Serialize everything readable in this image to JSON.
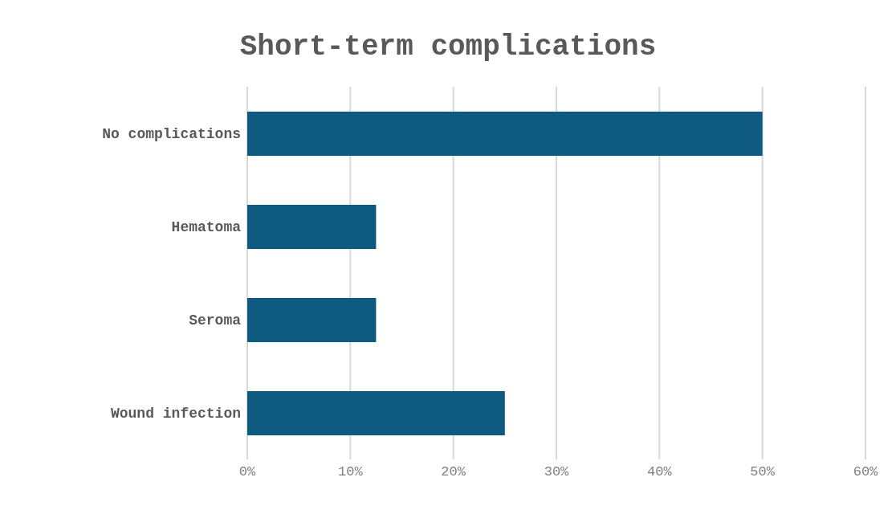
{
  "chart_data": {
    "type": "bar",
    "title": "Short-term complications",
    "orientation": "horizontal",
    "categories": [
      "No complications",
      "Hematoma",
      "Seroma",
      "Wound infection"
    ],
    "values": [
      50,
      12.5,
      12.5,
      25
    ],
    "color": "#0e5a80",
    "xlim": [
      0,
      60
    ],
    "xticks": [
      {
        "value": 0,
        "label": "0%"
      },
      {
        "value": 10,
        "label": "10%"
      },
      {
        "value": 20,
        "label": "20%"
      },
      {
        "value": 30,
        "label": "30%"
      },
      {
        "value": 40,
        "label": "40%"
      },
      {
        "value": 50,
        "label": "50%"
      },
      {
        "value": 60,
        "label": "60%"
      }
    ],
    "grid": "x"
  }
}
